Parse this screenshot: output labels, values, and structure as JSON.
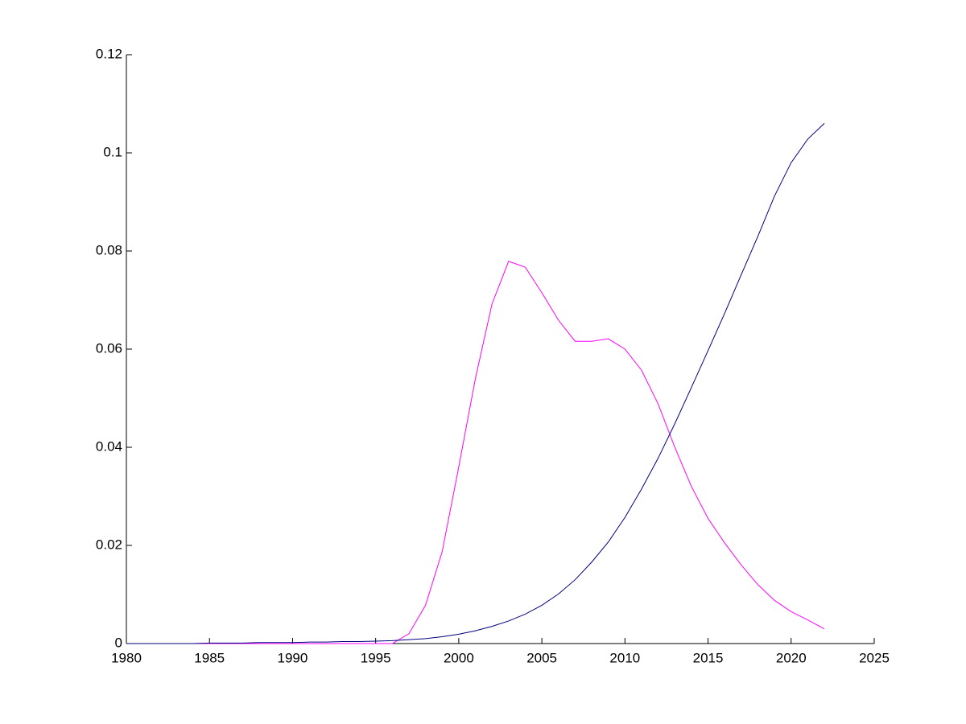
{
  "chart_data": {
    "type": "line",
    "x": [
      1980,
      1981,
      1982,
      1983,
      1984,
      1985,
      1986,
      1987,
      1988,
      1989,
      1990,
      1991,
      1992,
      1993,
      1994,
      1995,
      1996,
      1997,
      1998,
      1999,
      2000,
      2001,
      2002,
      2003,
      2004,
      2005,
      2006,
      2007,
      2008,
      2009,
      2010,
      2011,
      2012,
      2013,
      2014,
      2015,
      2016,
      2017,
      2018,
      2019,
      2020,
      2021,
      2022
    ],
    "series": [
      {
        "color": "#ff00ff",
        "values": [
          0,
          0,
          0,
          0,
          0,
          0,
          0,
          0,
          0,
          0,
          0,
          0,
          0,
          0,
          0,
          0,
          0,
          0.002,
          0.0078,
          0.0187,
          0.036,
          0.054,
          0.0692,
          0.0779,
          0.0767,
          0.0715,
          0.0659,
          0.0616,
          0.0616,
          0.0621,
          0.06,
          0.0557,
          0.0488,
          0.04,
          0.032,
          0.0255,
          0.0205,
          0.016,
          0.012,
          0.0088,
          0.0065,
          0.0048,
          0.003
        ]
      },
      {
        "color": "#000080",
        "values": [
          0,
          0,
          0,
          0,
          0,
          0.0001,
          0.0001,
          0.0001,
          0.0002,
          0.0002,
          0.0002,
          0.0003,
          0.0003,
          0.0004,
          0.0004,
          0.0005,
          0.0006,
          0.0008,
          0.001,
          0.0014,
          0.0019,
          0.0026,
          0.0035,
          0.0046,
          0.006,
          0.0078,
          0.0101,
          0.013,
          0.0166,
          0.0207,
          0.0257,
          0.0315,
          0.0378,
          0.0448,
          0.0522,
          0.0597,
          0.0673,
          0.0752,
          0.083,
          0.0912,
          0.098,
          0.1028,
          0.106
        ]
      }
    ],
    "xlim": [
      1980,
      2025
    ],
    "xticks": [
      1980,
      1985,
      1990,
      1995,
      2000,
      2005,
      2010,
      2015,
      2020,
      2025
    ],
    "ylim": [
      0,
      0.12
    ],
    "yticks": [
      0,
      0.02,
      0.04,
      0.06,
      0.08,
      0.1,
      0.12
    ]
  }
}
